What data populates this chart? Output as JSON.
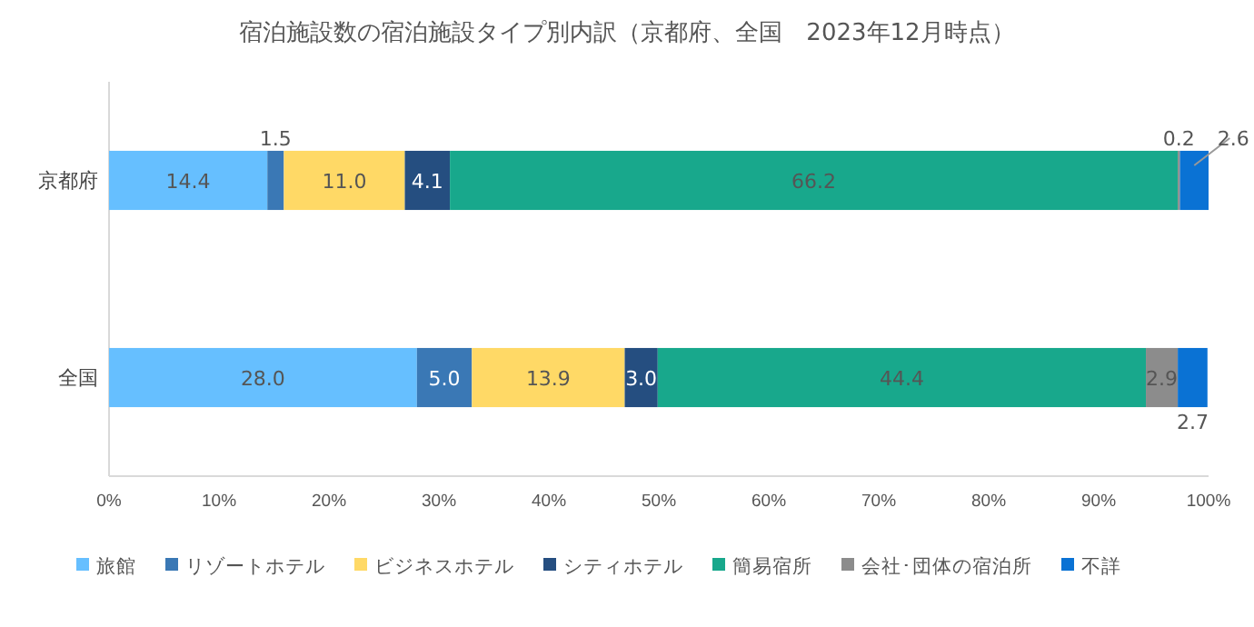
{
  "chart_data": {
    "type": "bar",
    "title": "宿泊施設数の宿泊施設タイプ別内訳（京都府、全国　2023年12月時点）",
    "orientation": "horizontal",
    "stacked": true,
    "legend": "bottom",
    "grid": false,
    "categories": [
      "京都府",
      "全国"
    ],
    "xlim": [
      0,
      100
    ],
    "xticks": [
      {
        "value": 0,
        "label": "0%"
      },
      {
        "value": 10,
        "label": "10%"
      },
      {
        "value": 20,
        "label": "20%"
      },
      {
        "value": 30,
        "label": "30%"
      },
      {
        "value": 40,
        "label": "40%"
      },
      {
        "value": 50,
        "label": "50%"
      },
      {
        "value": 60,
        "label": "60%"
      },
      {
        "value": 70,
        "label": "70%"
      },
      {
        "value": 80,
        "label": "80%"
      },
      {
        "value": 90,
        "label": "90%"
      },
      {
        "value": 100,
        "label": "100%"
      }
    ],
    "series": [
      {
        "name": "旅館",
        "color": "#66bfff",
        "values": [
          14.4,
          28.0
        ],
        "value_labels": [
          "14.4",
          "28.0"
        ]
      },
      {
        "name": "リゾートホテル",
        "color": "#3a78b5",
        "values": [
          1.5,
          5.0
        ],
        "value_labels": [
          "1.5",
          "5.0"
        ]
      },
      {
        "name": "ビジネスホテル",
        "color": "#ffd966",
        "values": [
          11.0,
          13.9
        ],
        "value_labels": [
          "11.0",
          "13.9"
        ]
      },
      {
        "name": "シティホテル",
        "color": "#254e80",
        "values": [
          4.1,
          3.0
        ],
        "value_labels": [
          "4.1",
          "3.0"
        ]
      },
      {
        "name": "簡易宿所",
        "color": "#18a88c",
        "values": [
          66.2,
          44.4
        ],
        "value_labels": [
          "66.2",
          "44.4"
        ]
      },
      {
        "name": "会社･団体の宿泊所",
        "color": "#8c8c8c",
        "values": [
          0.2,
          2.9
        ],
        "value_labels": [
          "0.2",
          "2.9"
        ]
      },
      {
        "name": "不詳",
        "color": "#0a72d4",
        "values": [
          2.6,
          2.7
        ],
        "value_labels": [
          "2.6",
          "2.7"
        ]
      }
    ]
  }
}
